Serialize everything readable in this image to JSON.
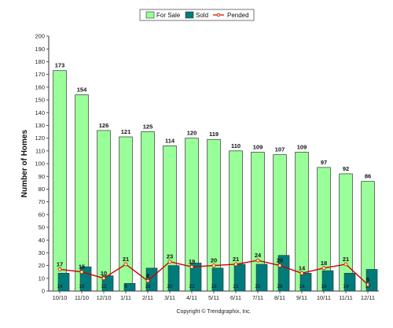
{
  "chart_data": {
    "type": "bar",
    "ylabel": "Number of Homes",
    "ylim": [
      0,
      200
    ],
    "yticks": [
      0,
      10,
      20,
      30,
      40,
      50,
      60,
      70,
      80,
      90,
      100,
      110,
      120,
      130,
      140,
      150,
      160,
      170,
      180,
      190,
      200
    ],
    "grid": false,
    "legend_position": "top-center",
    "categories": [
      "10/10",
      "11/10",
      "12/10",
      "1/11",
      "2/11",
      "3/11",
      "4/11",
      "5/11",
      "6/11",
      "7/11",
      "8/11",
      "9/11",
      "10/11",
      "11/11",
      "12/11"
    ],
    "series": [
      {
        "name": "For Sale",
        "type": "bar",
        "color": "#99ff99",
        "values": [
          173,
          154,
          126,
          121,
          125,
          114,
          120,
          119,
          110,
          109,
          107,
          109,
          97,
          92,
          86
        ]
      },
      {
        "name": "Sold",
        "type": "bar",
        "color": "#007b7b",
        "values": [
          14,
          19,
          12,
          6,
          18,
          20,
          22,
          18,
          21,
          21,
          28,
          14,
          16,
          14,
          17
        ]
      },
      {
        "name": "Pended",
        "type": "line",
        "color": "#cc0000",
        "values": [
          17,
          15,
          10,
          21,
          8,
          23,
          19,
          20,
          21,
          24,
          20,
          14,
          18,
          21,
          5
        ]
      }
    ],
    "copyright": "Copyright © Trendgraphix, Inc."
  }
}
